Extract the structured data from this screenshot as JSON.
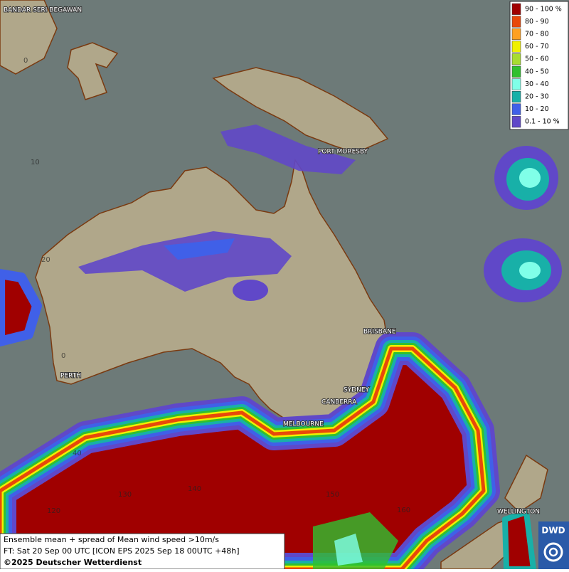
{
  "legend": {
    "items": [
      {
        "label": "90 - 100 %",
        "color": "#a00000"
      },
      {
        "label": "80 - 90",
        "color": "#e8480a"
      },
      {
        "label": "70 - 80",
        "color": "#ffa020"
      },
      {
        "label": "60 - 70",
        "color": "#f0f000"
      },
      {
        "label": "50 - 60",
        "color": "#a8dc30"
      },
      {
        "label": "40 - 50",
        "color": "#30c030"
      },
      {
        "label": "30 - 40",
        "color": "#80ffe8"
      },
      {
        "label": "20 - 30",
        "color": "#18b0a8"
      },
      {
        "label": "10 - 20",
        "color": "#4060e8"
      },
      {
        "label": "0.1 - 10 %",
        "color": "#6048c8"
      }
    ]
  },
  "cities": [
    "BANDAR SERI BEGAWAN",
    "PORT MORESBY",
    "BRISBANE",
    "SYDNEY",
    "CANBERRA",
    "MELBOURNE",
    "PERTH",
    "WELLINGTON"
  ],
  "latitude_labels": [
    "0",
    "10",
    "20",
    "0",
    "40"
  ],
  "longitude_labels": [
    "120",
    "130",
    "140",
    "150",
    "160"
  ],
  "footer": {
    "line1": "Ensemble mean + spread of Mean wind speed >10m/s",
    "line2": "FT: Sat 20 Sep 00 UTC [ICON EPS 2025 Sep 18 00UTC +48h]",
    "copyright": "©2025 Deutscher Wetterdienst"
  },
  "logo": "DWD"
}
